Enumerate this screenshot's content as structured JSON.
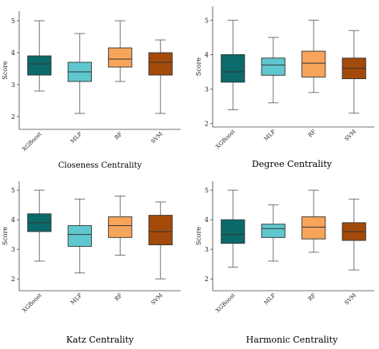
{
  "colors": {
    "XGBoost": "#0b6b6b",
    "MLP": "#5fc7cf",
    "RF": "#f6a55a",
    "SVM": "#a34a0b",
    "edge": "#333333",
    "whisker": "#666666"
  },
  "chart_data": [
    {
      "type": "box",
      "title": "Closeness Centrality",
      "ylabel": "Score",
      "ylim": [
        1.6,
        5.3
      ],
      "yticks": [
        "2",
        "3",
        "4",
        "5"
      ],
      "categories": [
        "XGBoost",
        "MLP",
        "RF",
        "SVM"
      ],
      "boxes": [
        {
          "min": 2.8,
          "q1": 3.3,
          "median": 3.65,
          "q3": 3.9,
          "max": 5.0
        },
        {
          "min": 2.1,
          "q1": 3.1,
          "median": 3.4,
          "q3": 3.7,
          "max": 4.6
        },
        {
          "min": 3.1,
          "q1": 3.55,
          "median": 3.8,
          "q3": 4.15,
          "max": 5.0
        },
        {
          "min": 2.1,
          "q1": 3.3,
          "median": 3.7,
          "q3": 4.0,
          "max": 4.4
        }
      ]
    },
    {
      "type": "box",
      "title": "Degree Centrality",
      "ylabel": "Score",
      "ylim": [
        1.9,
        5.4
      ],
      "yticks": [
        "2",
        "3",
        "4",
        "5"
      ],
      "categories": [
        "XGBoost",
        "MLP",
        "RF",
        "SVM"
      ],
      "boxes": [
        {
          "min": 2.4,
          "q1": 3.2,
          "median": 3.5,
          "q3": 4.0,
          "max": 5.0
        },
        {
          "min": 2.6,
          "q1": 3.4,
          "median": 3.7,
          "q3": 3.9,
          "max": 4.5
        },
        {
          "min": 2.9,
          "q1": 3.35,
          "median": 3.75,
          "q3": 4.1,
          "max": 5.0
        },
        {
          "min": 2.3,
          "q1": 3.3,
          "median": 3.6,
          "q3": 3.9,
          "max": 4.7
        }
      ]
    },
    {
      "type": "box",
      "title": "Katz Centrality",
      "ylabel": "Score",
      "ylim": [
        1.6,
        5.3
      ],
      "yticks": [
        "2",
        "3",
        "4",
        "5"
      ],
      "categories": [
        "XGBoost",
        "MLP",
        "RF",
        "SVM"
      ],
      "boxes": [
        {
          "min": 2.6,
          "q1": 3.6,
          "median": 3.9,
          "q3": 4.2,
          "max": 5.0
        },
        {
          "min": 2.2,
          "q1": 3.1,
          "median": 3.5,
          "q3": 3.8,
          "max": 4.7
        },
        {
          "min": 2.8,
          "q1": 3.4,
          "median": 3.8,
          "q3": 4.1,
          "max": 4.8
        },
        {
          "min": 2.0,
          "q1": 3.15,
          "median": 3.6,
          "q3": 4.15,
          "max": 4.6
        }
      ]
    },
    {
      "type": "box",
      "title": "Harmonic Centrality",
      "ylabel": "Score",
      "ylim": [
        1.6,
        5.3
      ],
      "yticks": [
        "2",
        "3",
        "4",
        "5"
      ],
      "categories": [
        "XGBoost",
        "MLP",
        "RF",
        "SVM"
      ],
      "boxes": [
        {
          "min": 2.4,
          "q1": 3.2,
          "median": 3.5,
          "q3": 4.0,
          "max": 5.0
        },
        {
          "min": 2.6,
          "q1": 3.4,
          "median": 3.7,
          "q3": 3.85,
          "max": 4.5
        },
        {
          "min": 2.9,
          "q1": 3.35,
          "median": 3.75,
          "q3": 4.1,
          "max": 5.0
        },
        {
          "min": 2.3,
          "q1": 3.3,
          "median": 3.6,
          "q3": 3.9,
          "max": 4.7
        }
      ]
    }
  ]
}
